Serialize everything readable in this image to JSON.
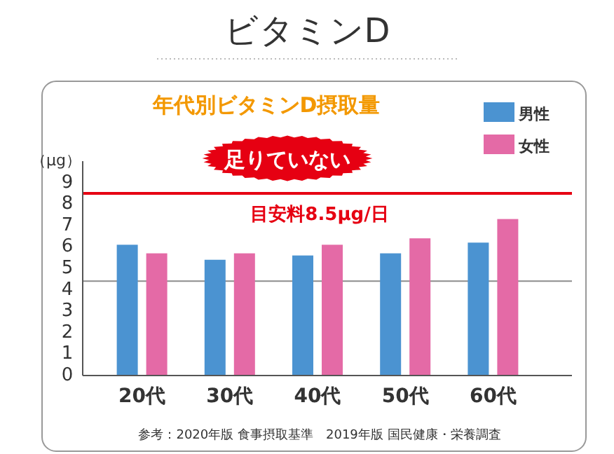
{
  "chart_data": {
    "type": "bar",
    "title": "ビタミンD",
    "subtitle": "年代別ビタミンD摂取量",
    "ylabel": "（μg）",
    "categories": [
      "20代",
      "30代",
      "40代",
      "50代",
      "60代"
    ],
    "series": [
      {
        "name": "男性",
        "color": "#4b93d1",
        "values": [
          6.1,
          5.4,
          5.6,
          5.7,
          6.2
        ]
      },
      {
        "name": "女性",
        "color": "#e46aa6",
        "values": [
          5.7,
          5.7,
          6.1,
          6.4,
          7.3
        ]
      }
    ],
    "ylim": [
      0,
      10
    ],
    "yticks": [
      0,
      1,
      2,
      3,
      4,
      5,
      6,
      7,
      8,
      9
    ],
    "ref_lines": [
      {
        "axis": "y",
        "value": 8.5,
        "label": "目安料8.5μg/日",
        "color": "#e60012"
      },
      {
        "axis": "y",
        "value": 4.4,
        "color": "#8c8c8c"
      }
    ],
    "annotations": [
      "足りていない",
      "参考：2020年版 食事摂取基準　2019年版 国民健康・栄養調査"
    ],
    "legend": "top right"
  }
}
